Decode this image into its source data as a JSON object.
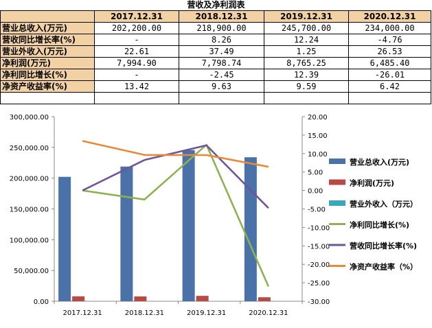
{
  "table": {
    "title": "营收及净利润表",
    "headers": [
      "",
      "2017.12.31",
      "2018.12.31",
      "2019.12.31",
      "2020.12.31"
    ],
    "rows": [
      {
        "label": "营业总收入(万元)",
        "cells": [
          "202,200.00",
          "218,900.00",
          "245,700.00",
          "234,000.00"
        ]
      },
      {
        "label": "营收同比增长率(%)",
        "cells": [
          "-",
          "8.26",
          "12.24",
          "-4.76"
        ]
      },
      {
        "label": "营业外收入(万元)",
        "cells": [
          "22.61",
          "37.49",
          "1.25",
          "26.53"
        ]
      },
      {
        "label": "净利润(万元)",
        "cells": [
          "7,994.90",
          "7,798.74",
          "8,765.25",
          "6,485.40"
        ]
      },
      {
        "label": "净利同比增长(%)",
        "cells": [
          "-",
          "-2.45",
          "12.39",
          "-26.01"
        ]
      },
      {
        "label": "净资产收益率(%)",
        "cells": [
          "13.42",
          "9.63",
          "9.59",
          "6.42"
        ]
      }
    ]
  },
  "chart_data": {
    "type": "bar",
    "categories": [
      "2017.12.31",
      "2018.12.31",
      "2019.12.31",
      "2020.12.31"
    ],
    "bar_series": [
      {
        "name": "营业总收入(万元)",
        "values": [
          202200,
          218900,
          245700,
          234000
        ],
        "color": "#4a72a8"
      },
      {
        "name": "净利润(万元)",
        "values": [
          7994.9,
          7798.74,
          8765.25,
          6485.4
        ],
        "color": "#b84a45"
      },
      {
        "name": "营业外收入（万元）",
        "values": [
          22.61,
          37.49,
          1.25,
          26.53
        ],
        "color": "#3aa8b8"
      }
    ],
    "line_series": [
      {
        "name": "净利同比增长(%)",
        "values": [
          0,
          -2.45,
          12.39,
          -26.01
        ],
        "color": "#8db350"
      },
      {
        "name": "营收同比增长率(%)",
        "values": [
          0,
          8.26,
          12.24,
          -4.76
        ],
        "color": "#6e549a"
      },
      {
        "name": "净资产收益率（%）",
        "values": [
          13.42,
          9.63,
          9.59,
          6.42
        ],
        "color": "#e8893a"
      }
    ],
    "y_left": {
      "min": 0,
      "max": 300000,
      "step": 50000,
      "tick_labels": [
        "0.00",
        "50,000.00",
        "100,000.00",
        "150,000.00",
        "200,000.00",
        "250,000.00",
        "300,000.00"
      ]
    },
    "y_right": {
      "min": -30,
      "max": 20,
      "step": 5,
      "tick_labels": [
        "-30.00",
        "-25.00",
        "-20.00",
        "-15.00",
        "-10.00",
        "-5.00",
        "0.00",
        "5.00",
        "10.00",
        "15.00",
        "20.00"
      ]
    },
    "legend_position": "right",
    "grid": false
  }
}
